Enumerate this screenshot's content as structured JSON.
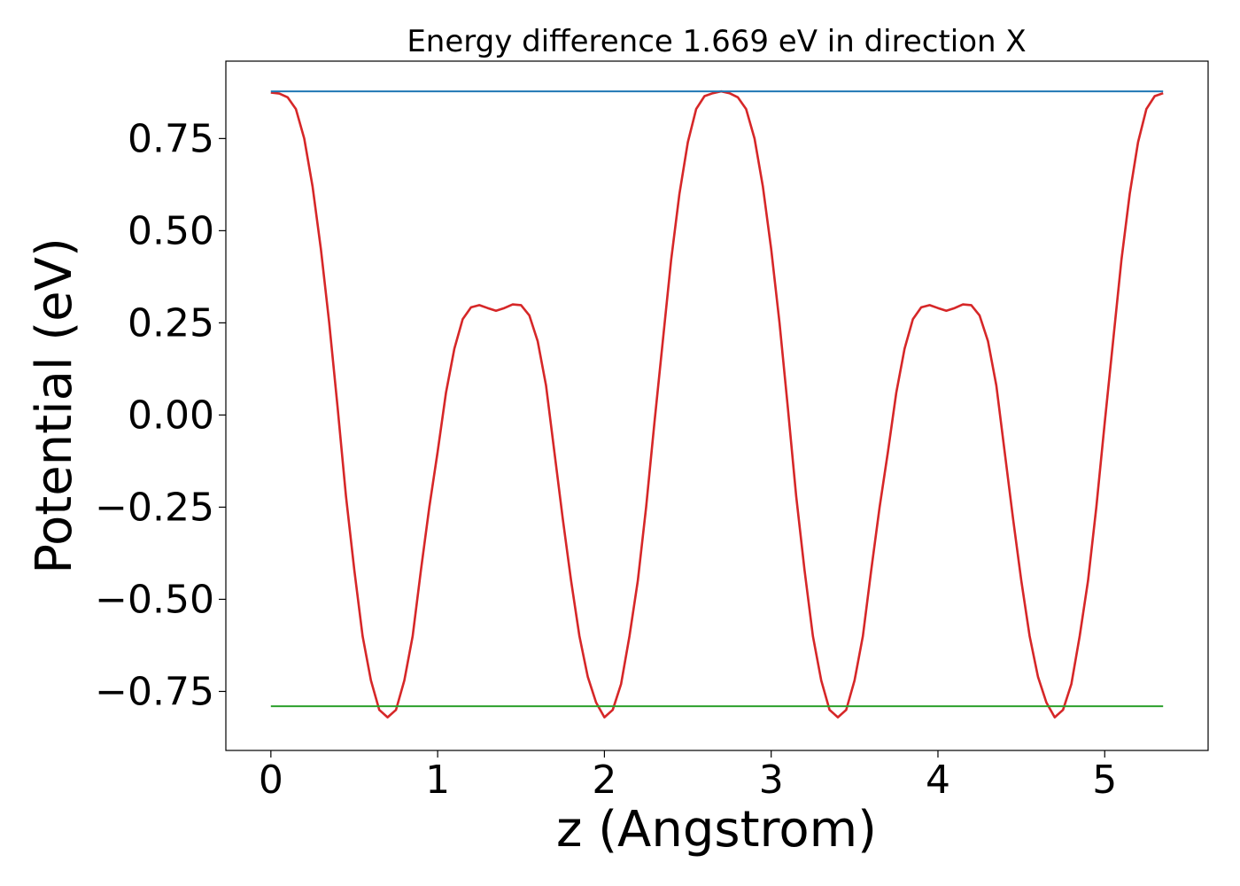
{
  "chart_data": {
    "type": "line",
    "title": "Energy difference 1.669 eV in direction X",
    "xlabel": "z (Angstrom)",
    "ylabel": "Potential (eV)",
    "xlim": [
      -0.27,
      5.62
    ],
    "ylim": [
      -0.91,
      0.96
    ],
    "xticks": [
      0,
      1,
      2,
      3,
      4,
      5
    ],
    "xtick_labels": [
      "0",
      "1",
      "2",
      "3",
      "4",
      "5"
    ],
    "yticks": [
      0.75,
      0.5,
      0.25,
      0.0,
      -0.25,
      -0.5,
      -0.75
    ],
    "ytick_labels": [
      "0.75",
      "0.50",
      "0.25",
      "0.00",
      "−0.25",
      "−0.50",
      "−0.75"
    ],
    "grid": false,
    "series": [
      {
        "color": "#d62728",
        "x": [
          0.0,
          0.05,
          0.1,
          0.15,
          0.2,
          0.25,
          0.3,
          0.35,
          0.4,
          0.45,
          0.5,
          0.55,
          0.6,
          0.65,
          0.7,
          0.75,
          0.8,
          0.85,
          0.9,
          0.95,
          1.0,
          1.05,
          1.1,
          1.15,
          1.2,
          1.25,
          1.3,
          1.35,
          1.4,
          1.45,
          1.5,
          1.55,
          1.6,
          1.65,
          1.7,
          1.75,
          1.8,
          1.85,
          1.9,
          1.95,
          2.0,
          2.05,
          2.1,
          2.15,
          2.2,
          2.25,
          2.3,
          2.35,
          2.4,
          2.45,
          2.5,
          2.55,
          2.6,
          2.65,
          2.7,
          2.75,
          2.8,
          2.85,
          2.9,
          2.95,
          3.0,
          3.05,
          3.1,
          3.15,
          3.2,
          3.25,
          3.3,
          3.35,
          3.4,
          3.45,
          3.5,
          3.55,
          3.6,
          3.65,
          3.7,
          3.75,
          3.8,
          3.85,
          3.9,
          3.95,
          4.0,
          4.05,
          4.1,
          4.15,
          4.2,
          4.25,
          4.3,
          4.35,
          4.4,
          4.45,
          4.5,
          4.55,
          4.6,
          4.65,
          4.7,
          4.75,
          4.8,
          4.85,
          4.9,
          4.95,
          5.0,
          5.05,
          5.1,
          5.15,
          5.2,
          5.25,
          5.3,
          5.35
        ],
        "y": [
          0.875,
          0.872,
          0.862,
          0.83,
          0.75,
          0.62,
          0.45,
          0.25,
          0.02,
          -0.22,
          -0.42,
          -0.6,
          -0.72,
          -0.8,
          -0.82,
          -0.8,
          -0.72,
          -0.6,
          -0.42,
          -0.25,
          -0.1,
          0.06,
          0.18,
          0.26,
          0.292,
          0.298,
          0.29,
          0.283,
          0.29,
          0.3,
          0.298,
          0.27,
          0.2,
          0.08,
          -0.1,
          -0.28,
          -0.45,
          -0.6,
          -0.71,
          -0.78,
          -0.82,
          -0.8,
          -0.73,
          -0.6,
          -0.45,
          -0.25,
          -0.02,
          0.2,
          0.42,
          0.6,
          0.74,
          0.83,
          0.865,
          0.873,
          0.878,
          0.873,
          0.862,
          0.83,
          0.75,
          0.62,
          0.45,
          0.25,
          0.02,
          -0.22,
          -0.42,
          -0.6,
          -0.72,
          -0.8,
          -0.82,
          -0.8,
          -0.72,
          -0.6,
          -0.42,
          -0.25,
          -0.1,
          0.06,
          0.18,
          0.26,
          0.292,
          0.298,
          0.29,
          0.283,
          0.29,
          0.3,
          0.298,
          0.27,
          0.2,
          0.08,
          -0.1,
          -0.28,
          -0.45,
          -0.6,
          -0.71,
          -0.78,
          -0.82,
          -0.8,
          -0.73,
          -0.6,
          -0.45,
          -0.25,
          -0.02,
          0.2,
          0.42,
          0.6,
          0.74,
          0.83,
          0.865,
          0.873
        ]
      },
      {
        "color": "#1f77b4",
        "x": [
          0.0,
          5.35
        ],
        "y": [
          0.878,
          0.878
        ]
      },
      {
        "color": "#2ca02c",
        "x": [
          0.0,
          5.35
        ],
        "y": [
          -0.79,
          -0.79
        ]
      }
    ]
  }
}
